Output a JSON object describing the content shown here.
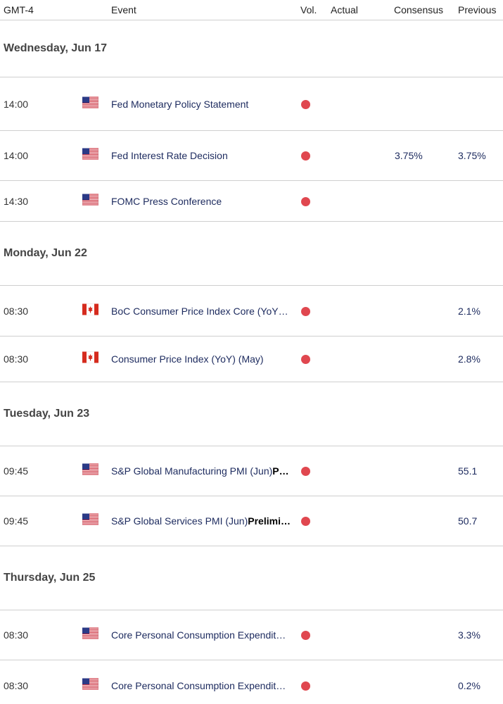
{
  "header": {
    "time": "GMT-4",
    "event": "Event",
    "vol": "Vol.",
    "actual": "Actual",
    "consensus": "Consensus",
    "previous": "Previous"
  },
  "volatility_color": "#e0474f",
  "days": [
    {
      "label": "Wednesday, Jun 17",
      "events": [
        {
          "time": "14:00",
          "flag": "us",
          "name": "Fed Monetary Policy Statement"
        },
        {
          "time": "14:00",
          "flag": "us",
          "name": "Fed Interest Rate Decision",
          "consensus": "3.75%",
          "previous": "3.75%"
        },
        {
          "time": "14:30",
          "flag": "us",
          "name": "FOMC Press Conference"
        }
      ]
    },
    {
      "label": "Monday, Jun 22",
      "events": [
        {
          "time": "08:30",
          "flag": "ca",
          "name": "BoC Consumer Price Index Core (YoY…",
          "previous": "2.1%"
        },
        {
          "time": "08:30",
          "flag": "ca",
          "name": "Consumer Price Index (YoY) (May)",
          "previous": "2.8%"
        }
      ]
    },
    {
      "label": "Tuesday, Jun 23",
      "events": [
        {
          "time": "09:45",
          "flag": "us",
          "name": "S&P Global Manufacturing PMI (Jun)",
          "name_bold": "P…",
          "previous": "55.1"
        },
        {
          "time": "09:45",
          "flag": "us",
          "name": "S&P Global Services PMI (Jun)",
          "name_bold": "Prelimi…",
          "previous": "50.7"
        }
      ]
    },
    {
      "label": "Thursday, Jun 25",
      "events": [
        {
          "time": "08:30",
          "flag": "us",
          "name": "Core Personal Consumption Expendit…",
          "previous": "3.3%"
        },
        {
          "time": "08:30",
          "flag": "us",
          "name": "Core Personal Consumption Expendit…",
          "previous": "0.2%"
        }
      ]
    }
  ]
}
